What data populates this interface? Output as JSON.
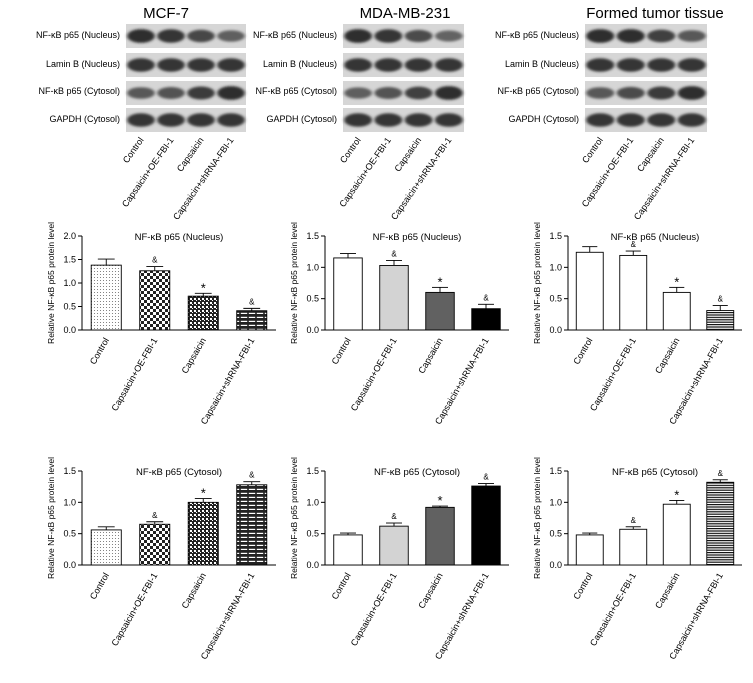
{
  "panel_titles": [
    "MCF-7",
    "MDA-MB-231",
    "Formed tumor tissue"
  ],
  "blot_labels": [
    "NF-κB p65 (Nucleus)",
    "Lamin B (Nucleus)",
    "NF-κB p65 (Cytosol)",
    "GAPDH (Cytosol)"
  ],
  "groups": [
    "Control",
    "Capsaicin+OE-FBI-1",
    "Capsaicin",
    "Capsaicin+shRNA-FBI-1"
  ],
  "colors": {
    "bar_outline": "#000000",
    "blot_background": "#d6d6d6",
    "band": "#1a1a1a"
  },
  "chart_data": [
    {
      "type": "bar",
      "title": "NF-κB p65 (Nucleus)",
      "cell_line": "MCF-7",
      "ylabel": "Relative NF-κB p65 protein level",
      "ylim": [
        0,
        2.0
      ],
      "yticks": [
        "0.0",
        "0.5",
        "1.0",
        "1.5",
        "2.0"
      ],
      "categories": [
        "Control",
        "Capsaicin+OE-FBI-1",
        "Capsaicin",
        "Capsaicin+shRNA-FBI-1"
      ],
      "values": [
        1.38,
        1.26,
        0.72,
        0.41
      ],
      "errors": [
        0.13,
        0.09,
        0.06,
        0.05
      ],
      "annotations": [
        "",
        "&",
        "*",
        "&"
      ],
      "patterns": [
        "dots",
        "checker",
        "grid",
        "bricks"
      ]
    },
    {
      "type": "bar",
      "title": "NF-κB p65 (Nucleus)",
      "cell_line": "MDA-MB-231",
      "ylabel": "Relative NF-κB p65 protein  level",
      "ylim": [
        0,
        1.5
      ],
      "yticks": [
        "0.0",
        "0.5",
        "1.0",
        "1.5"
      ],
      "categories": [
        "Control",
        "Capsaicin+OE-FBI-1",
        "Capsaicin",
        "Capsaicin+shRNA-FBI-1"
      ],
      "values": [
        1.15,
        1.03,
        0.6,
        0.34
      ],
      "errors": [
        0.07,
        0.08,
        0.08,
        0.07
      ],
      "annotations": [
        "",
        "&",
        "*",
        "&"
      ],
      "patterns": [
        "white",
        "lightgray",
        "darkgray",
        "black"
      ]
    },
    {
      "type": "bar",
      "title": "NF-κB p65 (Nucleus)",
      "cell_line": "Formed tumor tissue",
      "ylabel": "Relative NF-κB p65 protein level",
      "ylim": [
        0,
        1.5
      ],
      "yticks": [
        "0.0",
        "0.5",
        "1.0",
        "1.5"
      ],
      "categories": [
        "Control",
        "Capsaicin+OE-FBI-1",
        "Capsaicin",
        "Capsaicin+shRNA-FBI-1"
      ],
      "values": [
        1.24,
        1.19,
        0.6,
        0.31
      ],
      "errors": [
        0.09,
        0.07,
        0.08,
        0.08
      ],
      "annotations": [
        "",
        "&",
        "*",
        "&"
      ],
      "patterns": [
        "hlines",
        "hlines",
        "hlines",
        "hlines"
      ]
    },
    {
      "type": "bar",
      "title": "NF-κB p65 (Cytosol)",
      "cell_line": "MCF-7",
      "ylabel": "Relative NF-κB p65 protein level",
      "ylim": [
        0,
        1.5
      ],
      "yticks": [
        "0.0",
        "0.5",
        "1.0",
        "1.5"
      ],
      "categories": [
        "Control",
        "Capsaicin+OE-FBI-1",
        "Capsaicin",
        "Capsaicin+shRNA-FBI-1"
      ],
      "values": [
        0.56,
        0.65,
        1.0,
        1.28
      ],
      "errors": [
        0.05,
        0.04,
        0.06,
        0.05
      ],
      "annotations": [
        "",
        "&",
        "*",
        "&"
      ],
      "patterns": [
        "dots",
        "checker",
        "grid",
        "bricks"
      ]
    },
    {
      "type": "bar",
      "title": "NF-κB p65 (Cytosol)",
      "cell_line": "MDA-MB-231",
      "ylabel": "Relative NF-κB p65 protein level",
      "ylim": [
        0,
        1.5
      ],
      "yticks": [
        "0.0",
        "0.5",
        "1.0",
        "1.5"
      ],
      "categories": [
        "Control",
        "Capsaicin+OE-FBI-1",
        "Capsaicin",
        "Capsaicin+shRNA-FBI-1"
      ],
      "values": [
        0.48,
        0.62,
        0.92,
        1.26
      ],
      "errors": [
        0.03,
        0.05,
        0.02,
        0.04
      ],
      "annotations": [
        "",
        "&",
        "*",
        "&"
      ],
      "patterns": [
        "white",
        "lightgray",
        "darkgray",
        "black"
      ]
    },
    {
      "type": "bar",
      "title": "NF-κB p65 (Cytosol)",
      "cell_line": "Formed tumor tissue",
      "ylabel": "Relative NF-κB p65 protein level",
      "ylim": [
        0,
        1.5
      ],
      "yticks": [
        "0.0",
        "0.5",
        "1.0",
        "1.5"
      ],
      "categories": [
        "Control",
        "Capsaicin+OE-FBI-1",
        "Capsaicin",
        "Capsaicin+shRNA-FBI-1"
      ],
      "values": [
        0.48,
        0.57,
        0.97,
        1.32
      ],
      "errors": [
        0.03,
        0.04,
        0.06,
        0.04
      ],
      "annotations": [
        "",
        "&",
        "*",
        "&"
      ],
      "patterns": [
        "hlines",
        "hlines",
        "hlines",
        "hlines"
      ]
    }
  ]
}
